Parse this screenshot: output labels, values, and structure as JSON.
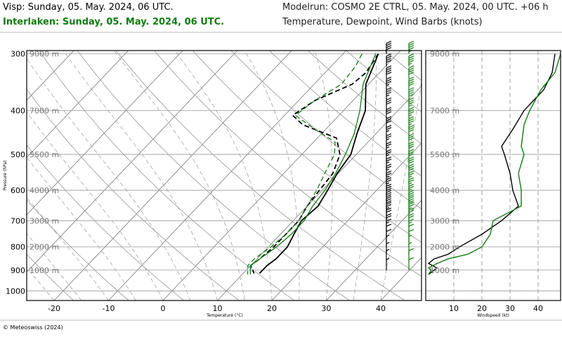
{
  "header": {
    "left_line1": "Visp: Sunday, 05. May. 2024, 06 UTC.",
    "left_line2": "Interlaken: Sunday, 05. May. 2024, 06 UTC.",
    "right_line1": "Modelrun: COSMO 2E CTRL, 05. May. 2024, 00 UTC. +06 h",
    "right_line2": "Temperature, Dewpoint, Wind Barbs (knots)"
  },
  "footer": {
    "copyright": "© Meteoswiss (2024)"
  },
  "colors": {
    "visp": "#000000",
    "interlaken": "#127a12",
    "grid": "#8a8a8a"
  },
  "chart_data": [
    {
      "type": "line",
      "subtype": "skew-T log-p",
      "xlabel": "Temperature (°C)",
      "ylabel": "Pressure (hPa)",
      "xlim": [
        -25,
        45
      ],
      "x_ticks": [
        -20,
        -10,
        0,
        10,
        20,
        30,
        40
      ],
      "pressure_ticks": [
        300,
        400,
        500,
        600,
        700,
        800,
        900,
        1000
      ],
      "ylim": [
        1050,
        295
      ],
      "height_labels": [
        {
          "p": 300,
          "label": "9000 m"
        },
        {
          "p": 400,
          "label": "7000 m"
        },
        {
          "p": 500,
          "label": "5500 m"
        },
        {
          "p": 600,
          "label": "4000 m"
        },
        {
          "p": 700,
          "label": "3000 m"
        },
        {
          "p": 800,
          "label": "2000 m"
        },
        {
          "p": 900,
          "label": "1000 m"
        }
      ],
      "series": [
        {
          "name": "Visp",
          "var": "temperature",
          "style": "solid",
          "points": [
            [
              300,
              -3.5
            ],
            [
              350,
              -0.5
            ],
            [
              400,
              4
            ],
            [
              450,
              6.5
            ],
            [
              500,
              9
            ],
            [
              550,
              9.8
            ],
            [
              600,
              11
            ],
            [
              650,
              12
            ],
            [
              700,
              11.5
            ],
            [
              750,
              12.5
            ],
            [
              800,
              13.5
            ],
            [
              850,
              13.5
            ],
            [
              880,
              13
            ],
            [
              915,
              13
            ]
          ]
        },
        {
          "name": "Visp",
          "var": "dewpoint",
          "style": "dashed",
          "points": [
            [
              300,
              -3.5
            ],
            [
              330,
              -2.5
            ],
            [
              350,
              -3
            ],
            [
              380,
              -7
            ],
            [
              410,
              -8.5
            ],
            [
              430,
              -5
            ],
            [
              460,
              3.5
            ],
            [
              500,
              7
            ],
            [
              550,
              9
            ],
            [
              600,
              9.5
            ],
            [
              650,
              10
            ],
            [
              700,
              11
            ],
            [
              750,
              11
            ],
            [
              800,
              11
            ],
            [
              850,
              10.5
            ],
            [
              880,
              10
            ],
            [
              915,
              12
            ]
          ]
        },
        {
          "name": "Interlaken",
          "var": "temperature",
          "style": "solid",
          "points": [
            [
              300,
              -4
            ],
            [
              350,
              -1
            ],
            [
              400,
              3
            ],
            [
              450,
              6
            ],
            [
              500,
              8
            ],
            [
              550,
              9.5
            ],
            [
              600,
              10.5
            ],
            [
              650,
              11
            ],
            [
              700,
              12
            ],
            [
              750,
              12
            ],
            [
              800,
              11.5
            ],
            [
              850,
              10.5
            ],
            [
              880,
              10
            ],
            [
              920,
              11.5
            ]
          ]
        },
        {
          "name": "Interlaken",
          "var": "dewpoint",
          "style": "dashed",
          "points": [
            [
              300,
              -6.5
            ],
            [
              320,
              -5.5
            ],
            [
              350,
              -5
            ],
            [
              380,
              -7
            ],
            [
              410,
              -8
            ],
            [
              440,
              -2
            ],
            [
              470,
              4
            ],
            [
              500,
              6
            ],
            [
              550,
              7.5
            ],
            [
              600,
              9
            ],
            [
              650,
              10
            ],
            [
              700,
              11
            ],
            [
              750,
              11
            ],
            [
              800,
              10.5
            ],
            [
              850,
              9.5
            ],
            [
              880,
              9.5
            ],
            [
              920,
              11
            ]
          ]
        }
      ],
      "wind_barbs_knots": {
        "pressures": [
          300,
          320,
          340,
          360,
          380,
          400,
          420,
          440,
          460,
          480,
          500,
          520,
          540,
          560,
          580,
          600,
          620,
          640,
          660,
          680,
          700,
          720,
          740,
          760,
          780,
          800,
          830,
          860,
          900
        ],
        "visp": [
          40,
          40,
          40,
          35,
          35,
          30,
          30,
          30,
          25,
          25,
          25,
          25,
          25,
          25,
          25,
          25,
          30,
          30,
          30,
          25,
          20,
          20,
          15,
          10,
          10,
          5,
          5,
          5,
          5
        ],
        "interlaken": [
          45,
          45,
          40,
          40,
          40,
          35,
          35,
          35,
          30,
          30,
          30,
          30,
          30,
          30,
          25,
          25,
          25,
          30,
          30,
          25,
          20,
          20,
          15,
          10,
          10,
          5,
          5,
          10,
          10
        ]
      }
    },
    {
      "type": "line",
      "xlabel": "Windspeed (kt)",
      "xlim": [
        0,
        48
      ],
      "x_ticks": [
        10,
        20,
        30,
        40
      ],
      "height_labels": [
        "9000 m",
        "7000 m",
        "5500 m",
        "4000 m",
        "3000 m",
        "2000 m",
        "1000 m"
      ],
      "series": [
        {
          "name": "Visp",
          "points": [
            [
              300,
              46
            ],
            [
              330,
              45
            ],
            [
              360,
              42
            ],
            [
              400,
              35
            ],
            [
              440,
              31
            ],
            [
              480,
              27
            ],
            [
              500,
              28
            ],
            [
              550,
              30
            ],
            [
              600,
              31
            ],
            [
              650,
              33
            ],
            [
              700,
              27
            ],
            [
              750,
              20
            ],
            [
              800,
              12
            ],
            [
              830,
              8
            ],
            [
              850,
              3
            ],
            [
              870,
              1
            ],
            [
              890,
              4
            ],
            [
              900,
              3
            ],
            [
              920,
              1
            ]
          ]
        },
        {
          "name": "Interlaken",
          "points": [
            [
              300,
              48
            ],
            [
              330,
              46
            ],
            [
              360,
              41
            ],
            [
              400,
              37
            ],
            [
              430,
              35
            ],
            [
              480,
              34
            ],
            [
              500,
              35
            ],
            [
              550,
              33
            ],
            [
              600,
              34
            ],
            [
              650,
              34
            ],
            [
              700,
              24
            ],
            [
              750,
              23
            ],
            [
              800,
              20
            ],
            [
              830,
              15
            ],
            [
              850,
              8
            ],
            [
              870,
              4
            ],
            [
              890,
              1
            ],
            [
              900,
              2
            ],
            [
              920,
              1
            ]
          ]
        }
      ]
    }
  ]
}
